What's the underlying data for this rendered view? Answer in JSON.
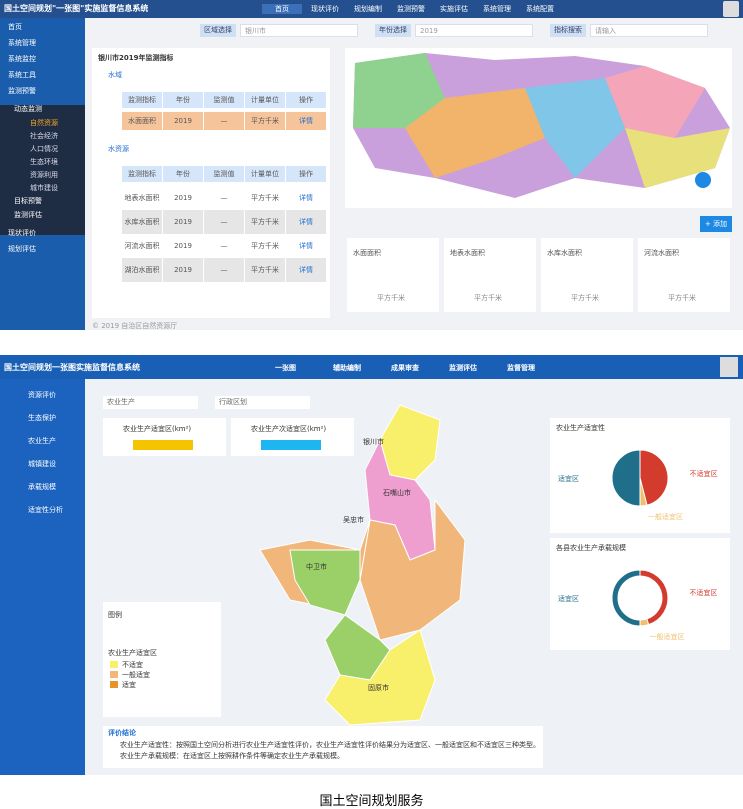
{
  "top": {
    "header": {
      "title": "国土空间规划\"一张图\"实施监督信息系统",
      "nav": [
        "首页",
        "现状评价",
        "规划编制",
        "监测预警",
        "实施评估",
        "系统管理",
        "系统配置"
      ]
    },
    "sidebar": [
      "首页",
      "系统管理",
      "系统监控",
      "系统工具",
      "监测预警"
    ],
    "submenu": {
      "title": "动态监测",
      "items": [
        "自然资源",
        "社会经济",
        "人口情况",
        "生态环境",
        "资源利用",
        "城市建设"
      ],
      "after": [
        "目标预警",
        "监测评估"
      ]
    },
    "sidebar_after": [
      "现状评价",
      "规划评估"
    ],
    "filters": [
      {
        "label": "区域选择",
        "value": "银川市"
      },
      {
        "label": "年份选择",
        "value": "2019"
      },
      {
        "label": "指标搜索",
        "value": "请输入"
      }
    ],
    "panel_title": "银川市2019年监测指标",
    "sections": [
      {
        "name": "水域",
        "columns": [
          "监测指标",
          "年份",
          "监测值",
          "计量单位",
          "操作"
        ],
        "rows": [
          [
            "水面面积",
            "2019",
            "—",
            "平方千米",
            "详情"
          ]
        ]
      },
      {
        "name": "水资源",
        "columns": [
          "监测指标",
          "年份",
          "监测值",
          "计量单位",
          "操作"
        ],
        "rows": [
          [
            "地表水面积",
            "2019",
            "—",
            "平方千米",
            "详情"
          ],
          [
            "水库水面积",
            "2019",
            "—",
            "平方千米",
            "详情"
          ],
          [
            "河流水面积",
            "2019",
            "—",
            "平方千米",
            "详情"
          ],
          [
            "湖泊水面积",
            "2019",
            "—",
            "平方千米",
            "详情"
          ]
        ]
      }
    ],
    "add_button": "+ 添加",
    "cards": [
      {
        "name": "水面面积",
        "unit": "平方千米"
      },
      {
        "name": "地表水面积",
        "unit": "平方千米"
      },
      {
        "name": "水库水面积",
        "unit": "平方千米"
      },
      {
        "name": "河流水面积",
        "unit": "平方千米"
      }
    ],
    "footer": "© 2019 自治区自然资源厅"
  },
  "bottom": {
    "header": {
      "title": "国土空间规划一张图实施监督信息系统",
      "nav": [
        "一张图",
        "辅助编制",
        "成果审查",
        "监测评估",
        "监督管理"
      ]
    },
    "sidebar": [
      "资源评价",
      "生态保护",
      "农业生产",
      "城镇建设",
      "承载规模",
      "适宜性分析"
    ],
    "selects": [
      "农业生产",
      "行政区划"
    ],
    "stats": [
      {
        "label": "农业生产适宜区(km²)"
      },
      {
        "label": "农业生产次适宜区(km²)"
      }
    ],
    "cities": [
      "石嘴山市",
      "银川市",
      "吴忠市",
      "中卫市",
      "固原市"
    ],
    "legend": {
      "title": "图例",
      "sub": "农业生产适宜区",
      "items": [
        "不适宜",
        "一般适宜",
        "适宜"
      ]
    },
    "pie": {
      "title": "农业生产适宜性",
      "labels": [
        "不适宜区",
        "一般适宜区",
        "适宜区"
      ],
      "values": [
        46,
        4,
        50
      ]
    },
    "donut": {
      "title": "各县农业生产承载规模",
      "labels": [
        "不适宜区",
        "一般适宜区",
        "适宜区"
      ],
      "values": [
        45,
        5,
        50
      ]
    },
    "conclusion": {
      "title": "评价结论",
      "lines": [
        "农业生产适宜性：按照国土空间分析进行农业生产适宜性评价，农业生产适宜性评价结果分为适宜区、一般适宜区和不适宜区三种类型。",
        "农业生产承载规模：在适宜区上按照耕作条件等确定农业生产承载规模。"
      ]
    }
  },
  "caption": "国土空间规划服务"
}
